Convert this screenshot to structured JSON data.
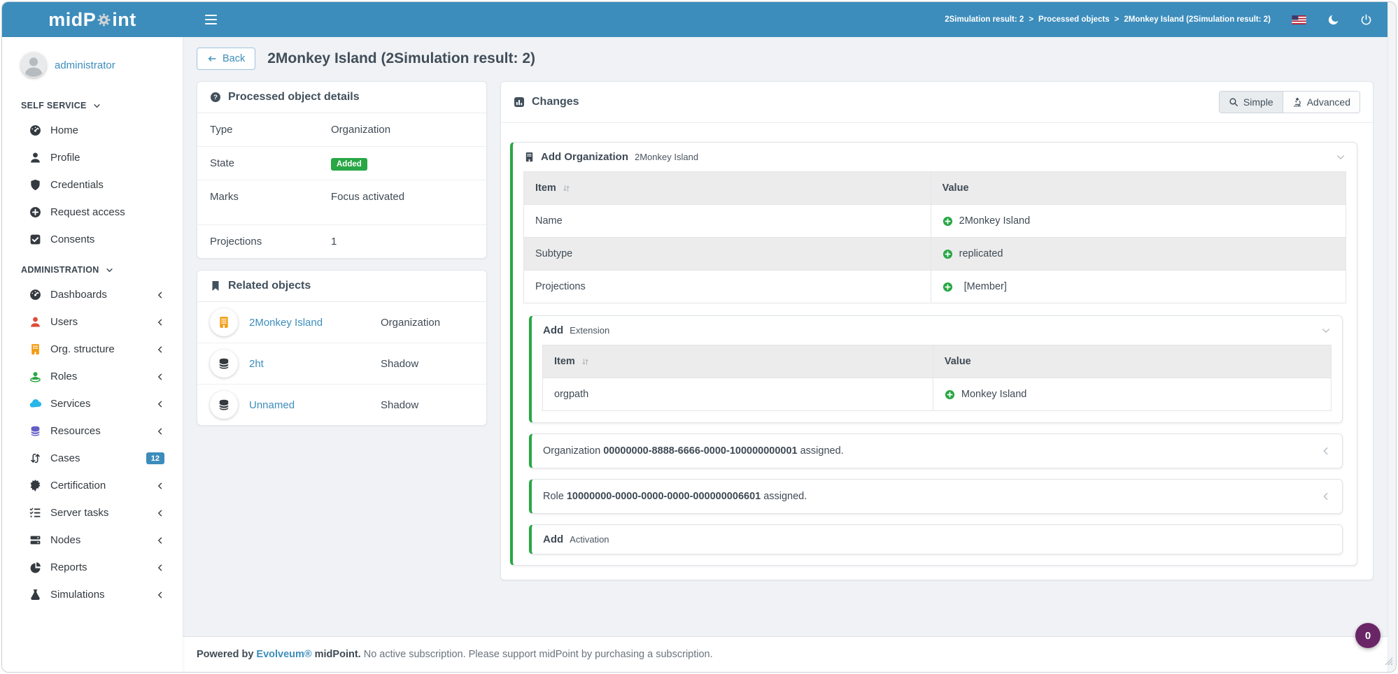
{
  "navbar": {
    "logo_pre": "midP",
    "logo_post": "int",
    "crumb_separator": ">",
    "breadcrumbs": [
      "2Simulation result: 2",
      "Processed objects",
      "2Monkey Island (2Simulation result: 2)"
    ]
  },
  "sidebar": {
    "user": "administrator",
    "sections": [
      {
        "label": "SELF SERVICE",
        "items": [
          {
            "icon": "tachometer",
            "label": "Home",
            "color": "#343a40"
          },
          {
            "icon": "user",
            "label": "Profile",
            "color": "#343a40"
          },
          {
            "icon": "shield",
            "label": "Credentials",
            "color": "#343a40"
          },
          {
            "icon": "plus-circle",
            "label": "Request access",
            "color": "#343a40"
          },
          {
            "icon": "check-square",
            "label": "Consents",
            "color": "#343a40"
          }
        ]
      },
      {
        "label": "ADMINISTRATION",
        "items": [
          {
            "icon": "tachometer",
            "label": "Dashboards",
            "color": "#343a40",
            "expand": true
          },
          {
            "icon": "user",
            "label": "Users",
            "color": "#dd4b39",
            "expand": true
          },
          {
            "icon": "building",
            "label": "Org. structure",
            "color": "#f39c12",
            "expand": true
          },
          {
            "icon": "user-ring",
            "label": "Roles",
            "color": "#28a745",
            "expand": true
          },
          {
            "icon": "cloud",
            "label": "Services",
            "color": "#29b6e8",
            "expand": true
          },
          {
            "icon": "database",
            "label": "Resources",
            "color": "#655dc6",
            "expand": true
          },
          {
            "icon": "case-arrows",
            "label": "Cases",
            "color": "#343a40",
            "badge": "12"
          },
          {
            "icon": "certificate",
            "label": "Certification",
            "color": "#343a40",
            "expand": true
          },
          {
            "icon": "list-check",
            "label": "Server tasks",
            "color": "#343a40",
            "expand": true
          },
          {
            "icon": "server",
            "label": "Nodes",
            "color": "#343a40",
            "expand": true
          },
          {
            "icon": "chart-pie",
            "label": "Reports",
            "color": "#343a40",
            "expand": true
          },
          {
            "icon": "flask",
            "label": "Simulations",
            "color": "#343a40",
            "expand": true
          }
        ]
      }
    ]
  },
  "page": {
    "back_label": "Back",
    "title": "2Monkey Island (2Simulation result: 2)"
  },
  "details": {
    "title": "Processed object details",
    "rows": [
      {
        "label": "Type",
        "value": "Organization"
      },
      {
        "label": "State",
        "badge": "Added"
      },
      {
        "label": "Marks",
        "value": "Focus activated"
      },
      {
        "label": "Projections",
        "value": "1"
      }
    ]
  },
  "related": {
    "title": "Related objects",
    "rows": [
      {
        "icon": "building",
        "icon_color": "#f39c12",
        "name": "2Monkey Island",
        "type": "Organization"
      },
      {
        "icon": "database",
        "icon_color": "#343a40",
        "name": "2ht",
        "type": "Shadow"
      },
      {
        "icon": "database",
        "icon_color": "#343a40",
        "name": "Unnamed",
        "type": "Shadow"
      }
    ]
  },
  "changes": {
    "title": "Changes",
    "simple_label": "Simple",
    "advanced_label": "Advanced",
    "add_org": {
      "action": "Add Organization",
      "subject": "2Monkey Island",
      "item_header": "Item",
      "value_header": "Value",
      "rows": [
        {
          "item": "Name",
          "value": "2Monkey Island"
        },
        {
          "item": "Subtype",
          "value": "replicated"
        },
        {
          "item": "Projections",
          "value": "[Member]"
        }
      ]
    },
    "add_ext": {
      "action": "Add",
      "subject": "Extension",
      "item_header": "Item",
      "value_header": "Value",
      "rows": [
        {
          "item": "orgpath",
          "value": "Monkey Island"
        }
      ]
    },
    "assignments": [
      {
        "prefix": "Organization",
        "id": "00000000-8888-6666-0000-100000000001",
        "suffix": "assigned."
      },
      {
        "prefix": "Role",
        "id": "10000000-0000-0000-0000-000000006601",
        "suffix": "assigned."
      }
    ],
    "add_activation": {
      "action": "Add",
      "subject": "Activation"
    }
  },
  "footer": {
    "powered": "Powered by",
    "brand": "Evolveum®",
    "product": "midPoint.",
    "note": "No active subscription. Please support midPoint by purchasing a subscription.",
    "bubble_count": "0"
  },
  "colors": {
    "navbar": "#3c8dbc",
    "accent_green": "#28a745",
    "link": "#3c8dbc",
    "bubble": "#692566",
    "users_red": "#dd4b39",
    "org_orange": "#f39c12",
    "services_cyan": "#29b6e8",
    "resources_purple": "#655dc6"
  }
}
